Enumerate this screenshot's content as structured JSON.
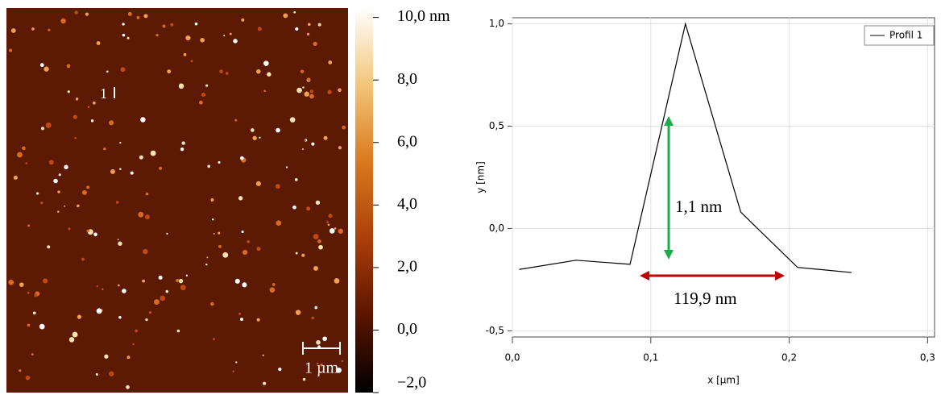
{
  "chart_data": [
    {
      "type": "image",
      "annotation": "1",
      "scale_bar": "1 µm",
      "colorbar": {
        "lim": [
          -2,
          10.3
        ],
        "ticks": [
          {
            "value": 10,
            "label": "10,0 nm"
          },
          {
            "value": 8,
            "label": "8,0"
          },
          {
            "value": 6,
            "label": "6,0"
          },
          {
            "value": 4,
            "label": "4,0"
          },
          {
            "value": 2,
            "label": "2,0"
          },
          {
            "value": 0,
            "label": "0,0"
          },
          {
            "value": -2,
            "label": "−2,0"
          }
        ]
      }
    },
    {
      "type": "line",
      "xlabel": "x [µm]",
      "ylabel": "y [nm]",
      "x": [
        0.005,
        0.046,
        0.085,
        0.125,
        0.165,
        0.206,
        0.245
      ],
      "series": [
        {
          "name": "Profil 1",
          "color": "#000000",
          "values": [
            -0.2,
            -0.155,
            -0.175,
            1.0,
            0.08,
            -0.19,
            -0.215
          ]
        }
      ],
      "xlim": [
        0,
        0.305
      ],
      "ylim": [
        -0.53,
        1.03
      ],
      "xticks": [
        {
          "value": 0,
          "label": "0,0"
        },
        {
          "value": 0.1,
          "label": "0,1"
        },
        {
          "value": 0.2,
          "label": "0,2"
        },
        {
          "value": 0.3,
          "label": "0,3"
        }
      ],
      "yticks": [
        {
          "value": -0.5,
          "label": "-0,5"
        },
        {
          "value": 0,
          "label": "0,0"
        },
        {
          "value": 0.5,
          "label": "0,5"
        },
        {
          "value": 1,
          "label": "1,0"
        }
      ],
      "grid": true,
      "legend": "upper right",
      "annotations": [
        "1,1 nm",
        "119,9 nm"
      ]
    }
  ]
}
